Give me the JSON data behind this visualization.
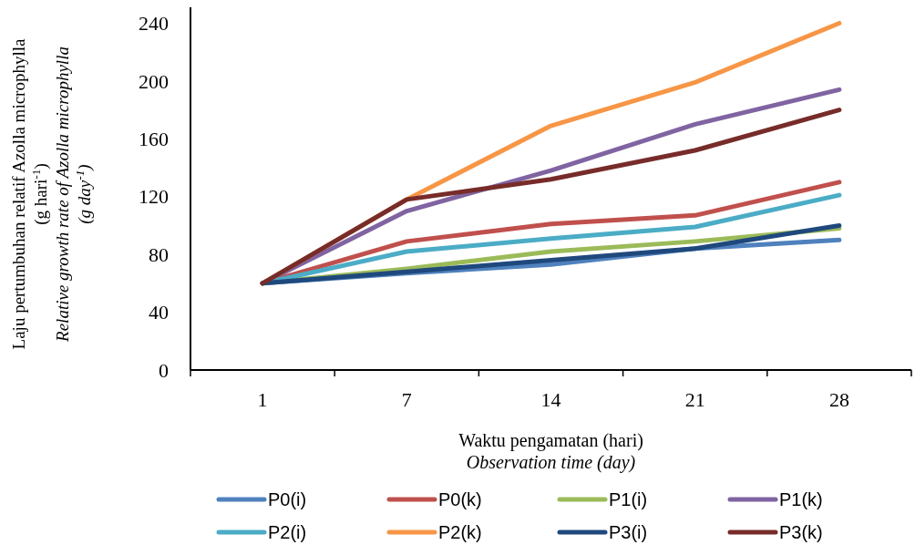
{
  "chart_data": {
    "type": "line",
    "xlabel": "Waktu pengamatan (hari)\nObservation time (day)",
    "ylabel": "Laju pertumbuhan relatif Azolla microphylla\n(g hari$^{-1}$)\nRelative growth rate of Azolla microphylla\n(g day$^{-1}$)",
    "categories": [
      "1",
      "7",
      "14",
      "21",
      "28"
    ],
    "ylim": [
      0,
      251
    ],
    "yticks": [
      0,
      40,
      80,
      120,
      160,
      200,
      240
    ],
    "grid": false,
    "legend": "bottom",
    "marker": "none",
    "line_style": "solid",
    "series": [
      {
        "name": "P0(i)",
        "color": "#4f81bd",
        "values": [
          60,
          67,
          73,
          84,
          90
        ]
      },
      {
        "name": "P0(k)",
        "color": "#c0504d",
        "values": [
          60,
          89,
          101,
          107,
          130
        ]
      },
      {
        "name": "P1(i)",
        "color": "#9bbb59",
        "values": [
          60,
          70,
          82,
          89,
          98
        ]
      },
      {
        "name": "P1(k)",
        "color": "#8064a2",
        "values": [
          60,
          110,
          138,
          170,
          194
        ]
      },
      {
        "name": "P2(i)",
        "color": "#4bacc6",
        "values": [
          60,
          82,
          91,
          99,
          121
        ]
      },
      {
        "name": "P2(k)",
        "color": "#f79646",
        "values": [
          60,
          118,
          169,
          199,
          240
        ]
      },
      {
        "name": "P3(i)",
        "color": "#1f497d",
        "values": [
          60,
          68,
          76,
          84,
          100
        ]
      },
      {
        "name": "P3(k)",
        "color": "#772c2a",
        "values": [
          60,
          118,
          132,
          152,
          180
        ]
      }
    ]
  }
}
